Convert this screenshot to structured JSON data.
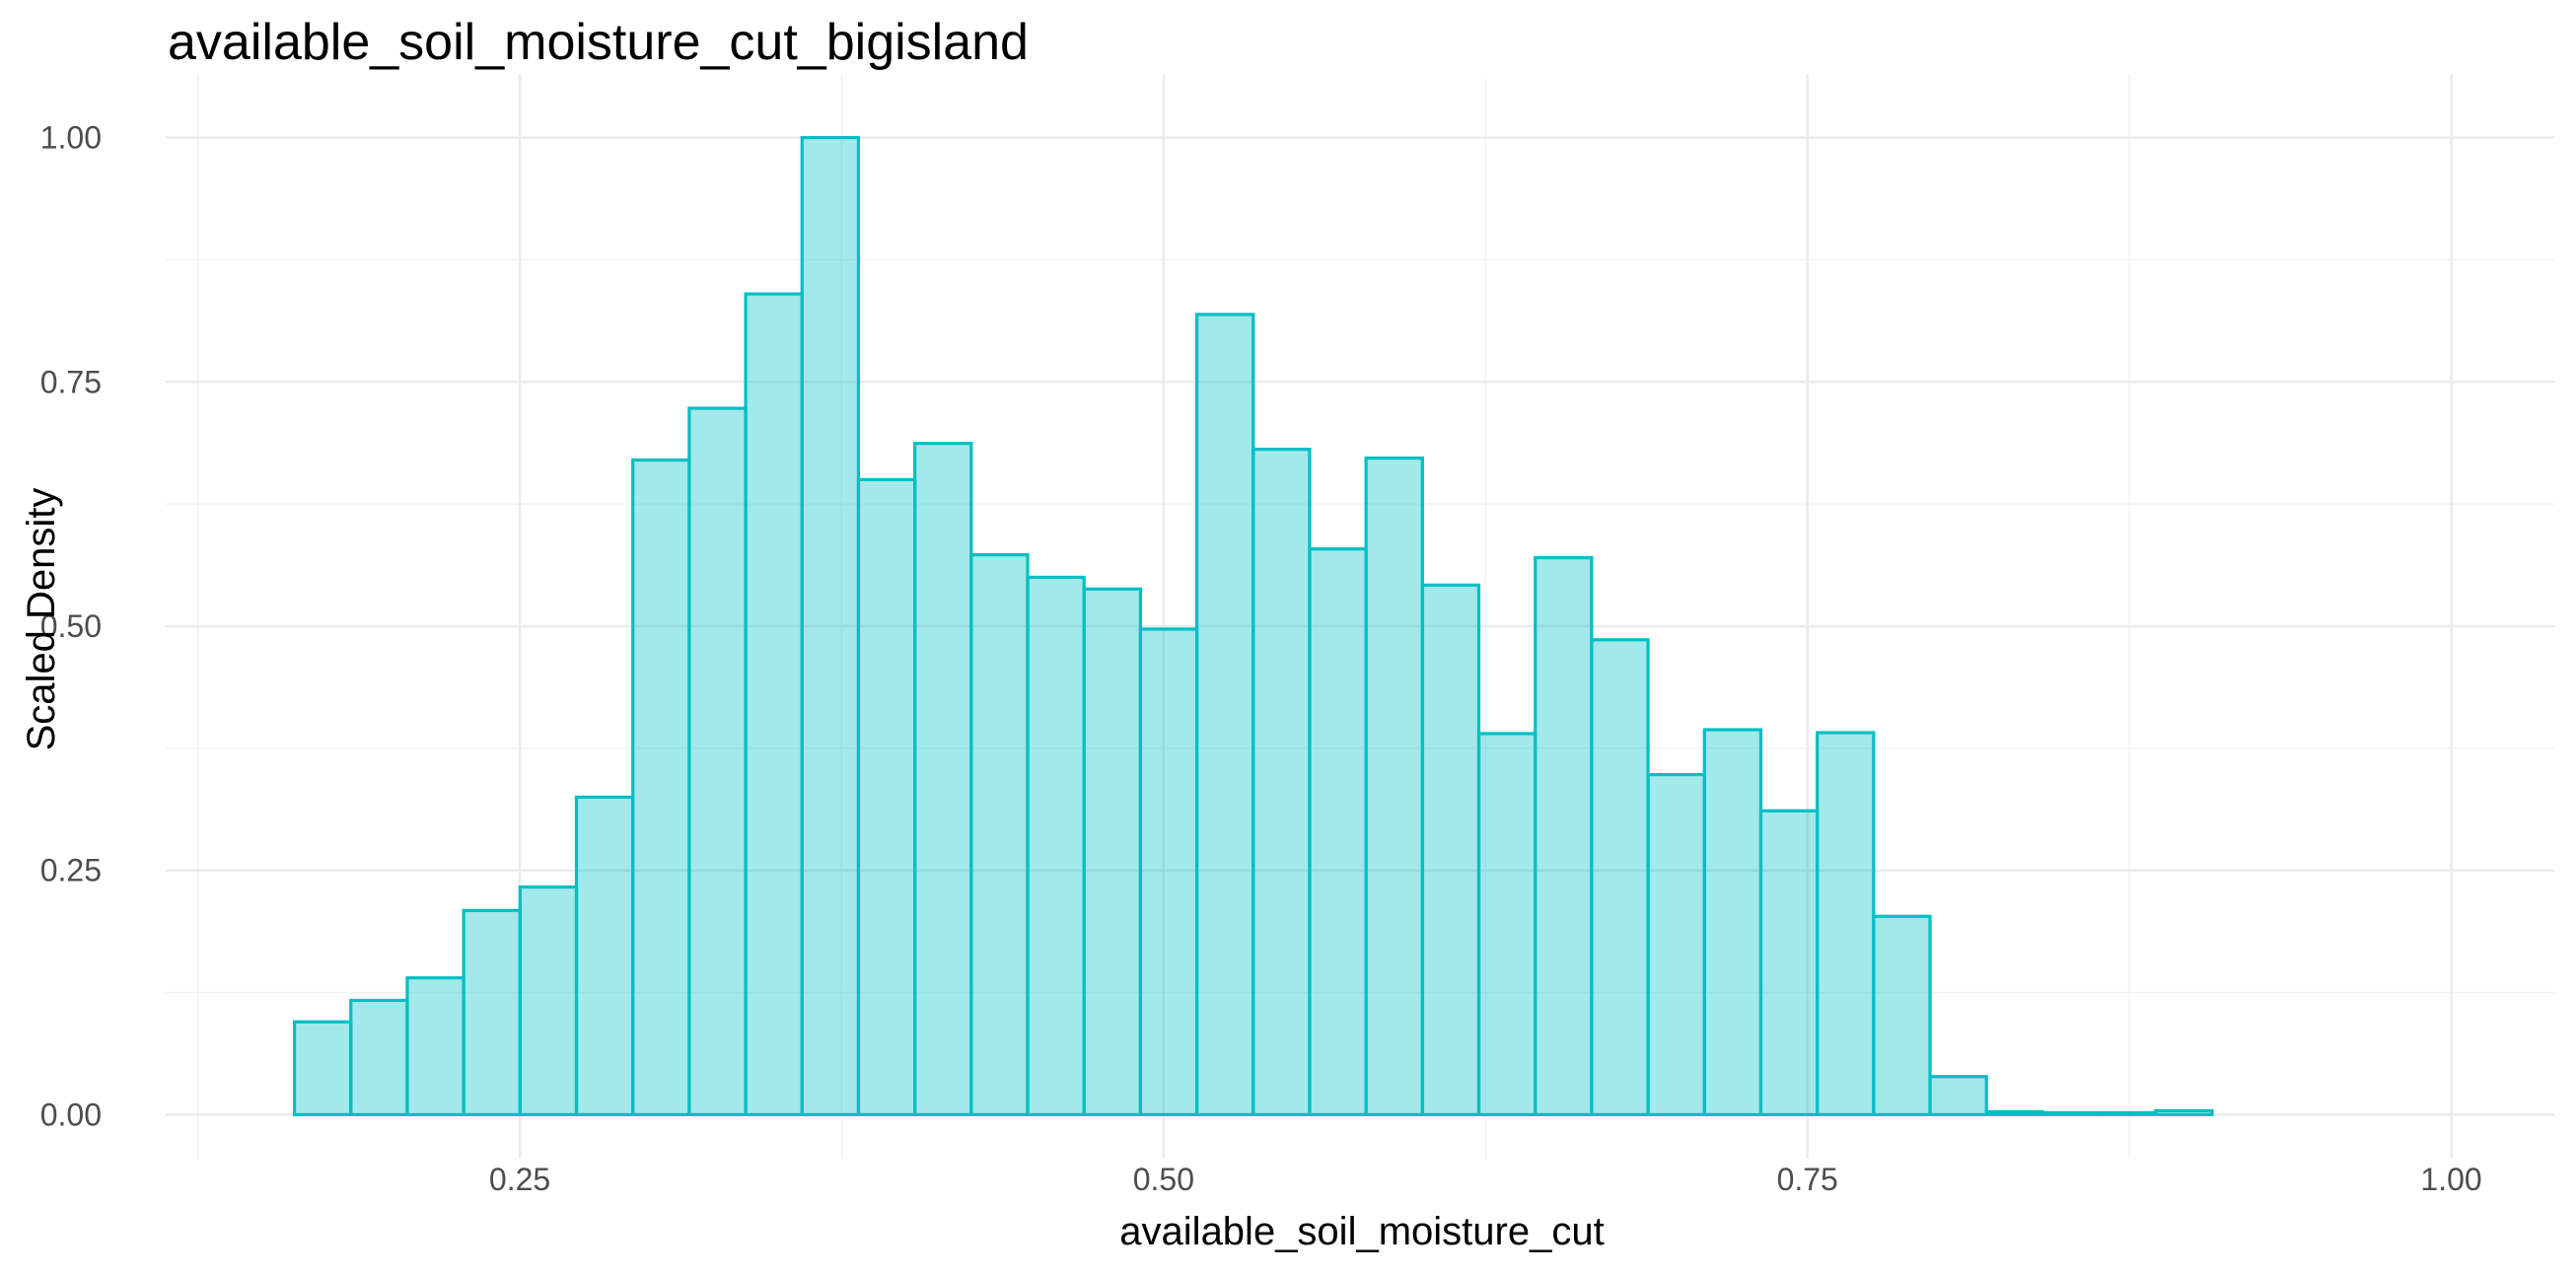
{
  "chart_data": {
    "type": "bar",
    "title": "available_soil_moisture_cut_bigisland",
    "xlabel": "available_soil_moisture_cut",
    "ylabel": "Scaled Density",
    "xlim": [
      0.1125,
      1.04
    ],
    "ylim": [
      -0.045,
      1.05
    ],
    "x_ticks": [
      0.25,
      0.5,
      0.75,
      1.0
    ],
    "x_tick_labels": [
      "0.25",
      "0.50",
      "0.75",
      "1.00"
    ],
    "y_ticks": [
      0.0,
      0.25,
      0.5,
      0.75,
      1.0
    ],
    "y_tick_labels": [
      "0.00",
      "0.25",
      "0.50",
      "0.75",
      "1.00"
    ],
    "grid": true,
    "bin_start": 0.1625,
    "bin_width": 0.0219,
    "values": [
      0.095,
      0.117,
      0.14,
      0.209,
      0.233,
      0.325,
      0.67,
      0.723,
      0.84,
      1.0,
      0.65,
      0.687,
      0.573,
      0.55,
      0.538,
      0.497,
      0.819,
      0.681,
      0.579,
      0.672,
      0.542,
      0.39,
      0.57,
      0.486,
      0.348,
      0.394,
      0.311,
      0.391,
      0.203,
      0.039,
      0.003,
      0.002,
      0.002,
      0.004,
      0.0,
      0.0,
      0.0,
      0.0
    ],
    "series": [
      {
        "color": "#00bfc4"
      }
    ]
  }
}
